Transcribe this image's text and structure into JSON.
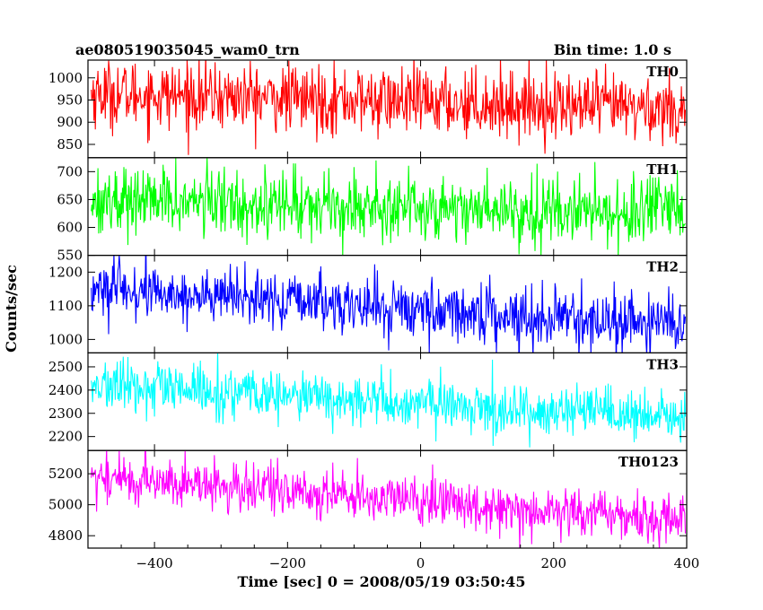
{
  "header": {
    "title": "ae080519035045_wam0_trn",
    "bin_time": "Bin time: 1.0 s"
  },
  "axes": {
    "xlabel": "Time [sec] 0 = 2008/05/19 03:50:45",
    "ylabel": "Counts/sec"
  },
  "chart_data": {
    "type": "line",
    "title": "ae080519035045_wam0_trn",
    "subtitle": "Bin time: 1.0 s",
    "xlabel": "Time [sec] 0 = 2008/05/19 03:50:45",
    "ylabel": "Counts/sec",
    "xlim": [
      -500,
      400
    ],
    "x_ticks": [
      -400,
      -200,
      0,
      200,
      400
    ],
    "x_sampling": {
      "start": -495,
      "end": 398,
      "step": 1
    },
    "grid": false,
    "panels": [
      {
        "name": "TH0",
        "color": "#ff0000",
        "ylim": [
          820,
          1040
        ],
        "yticks": [
          850,
          900,
          950,
          1000
        ],
        "trend": {
          "start": 965,
          "end": 930
        },
        "noise_sigma": 38
      },
      {
        "name": "TH1",
        "color": "#00ff00",
        "ylim": [
          550,
          725
        ],
        "yticks": [
          550,
          600,
          650,
          700
        ],
        "trend": {
          "start": 650,
          "end": 625
        },
        "noise_sigma": 30
      },
      {
        "name": "TH2",
        "color": "#0000ff",
        "ylim": [
          960,
          1250
        ],
        "yticks": [
          1000,
          1100,
          1200
        ],
        "trend": {
          "start": 1150,
          "end": 1040
        },
        "noise_sigma": 42
      },
      {
        "name": "TH3",
        "color": "#00ffff",
        "ylim": [
          2140,
          2560
        ],
        "yticks": [
          2200,
          2300,
          2400,
          2500
        ],
        "trend": {
          "start": 2420,
          "end": 2275
        },
        "noise_sigma": 55
      },
      {
        "name": "TH0123",
        "color": "#ff00ff",
        "ylim": [
          4720,
          5350
        ],
        "yticks": [
          4800,
          5000,
          5200
        ],
        "trend": {
          "start": 5180,
          "end": 4900
        },
        "noise_sigma": 80
      }
    ]
  }
}
